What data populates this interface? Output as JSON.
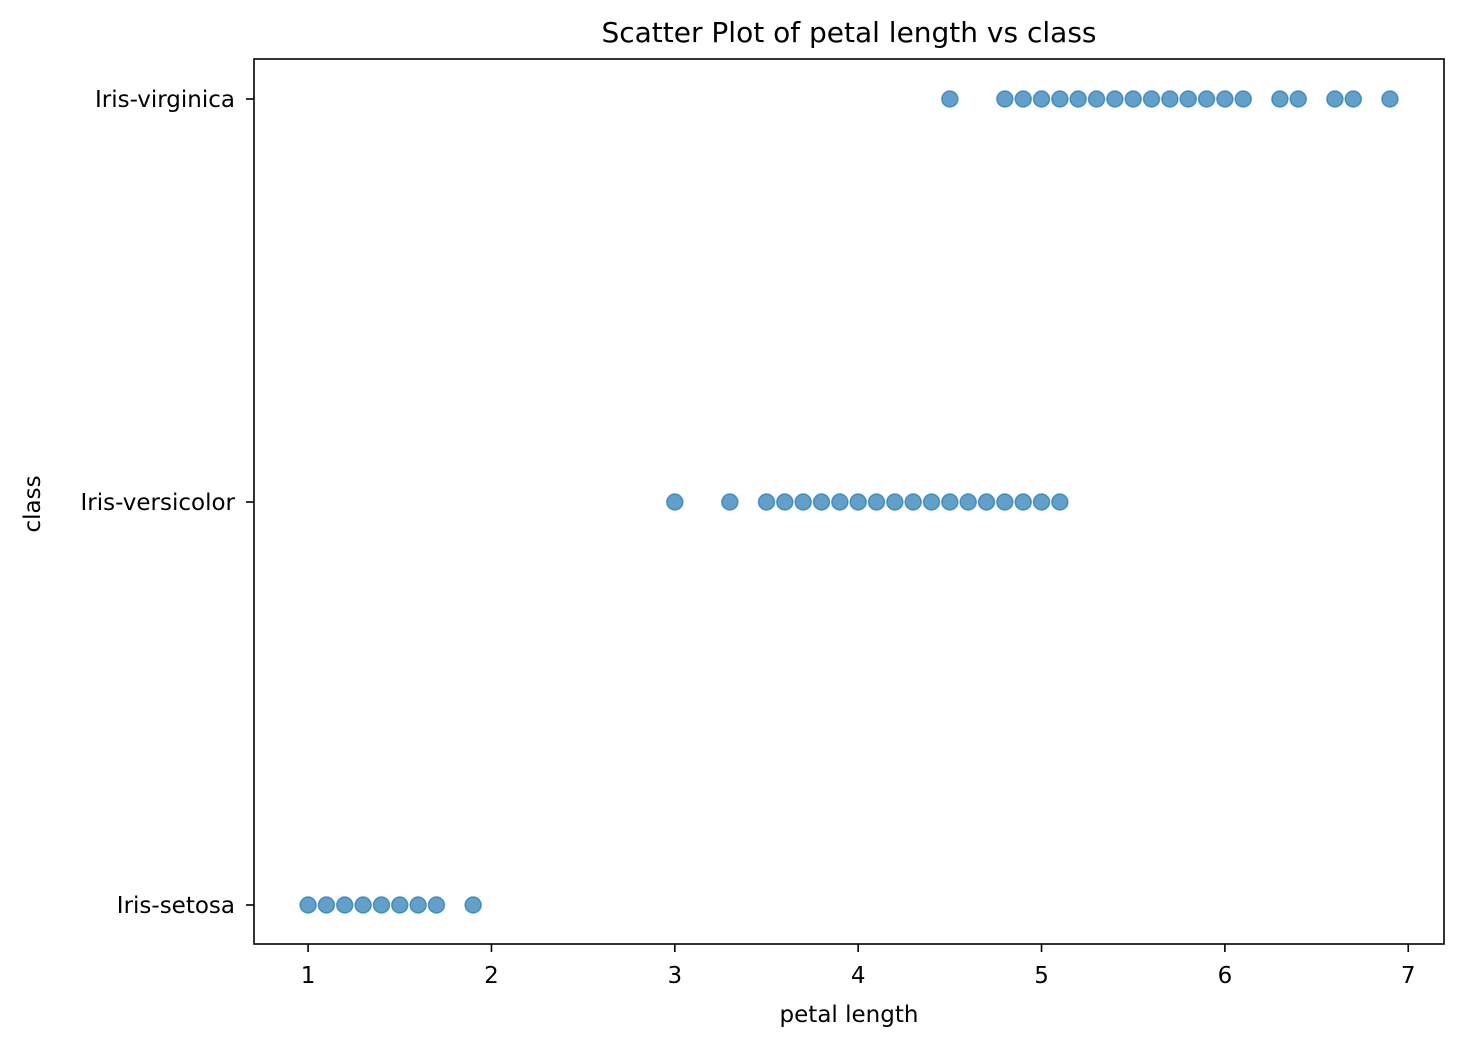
{
  "chart_data": {
    "type": "scatter",
    "title": "Scatter Plot of petal length vs class",
    "xlabel": "petal length",
    "ylabel": "class",
    "xlim": [
      0.705,
      7.195
    ],
    "x_ticks": [
      1,
      2,
      3,
      4,
      5,
      6,
      7
    ],
    "y_categories": [
      "Iris-setosa",
      "Iris-versicolor",
      "Iris-virginica"
    ],
    "grid": false,
    "marker_color": "#1f77b4",
    "marker_alpha": 0.7,
    "series": [
      {
        "category": "Iris-setosa",
        "x": [
          1.0,
          1.1,
          1.2,
          1.3,
          1.4,
          1.5,
          1.6,
          1.7,
          1.9
        ]
      },
      {
        "category": "Iris-versicolor",
        "x": [
          3.0,
          3.3,
          3.5,
          3.6,
          3.7,
          3.8,
          3.9,
          4.0,
          4.1,
          4.2,
          4.3,
          4.4,
          4.5,
          4.6,
          4.7,
          4.8,
          4.9,
          5.0,
          5.1
        ]
      },
      {
        "category": "Iris-virginica",
        "x": [
          4.5,
          4.8,
          4.9,
          5.0,
          5.1,
          5.2,
          5.3,
          5.4,
          5.5,
          5.6,
          5.7,
          5.8,
          5.9,
          6.0,
          6.1,
          6.3,
          6.4,
          6.6,
          6.7,
          6.9
        ]
      }
    ]
  }
}
